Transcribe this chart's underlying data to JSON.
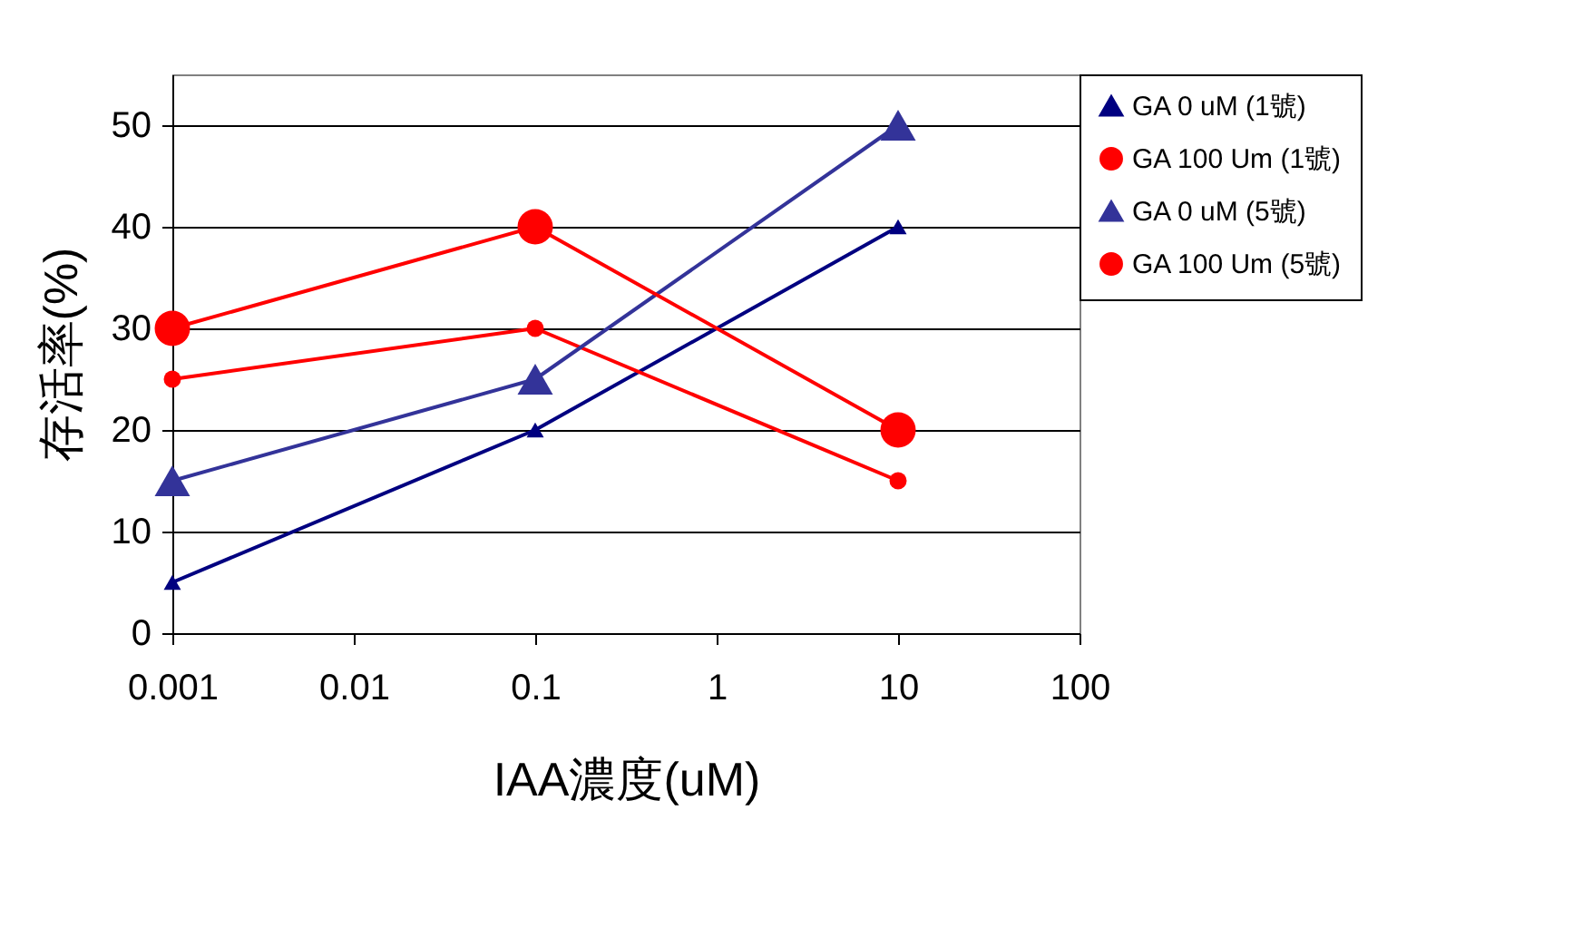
{
  "chart_data": {
    "type": "line",
    "xlabel": "IAA濃度(uM)",
    "ylabel": "存活率(%)",
    "x": [
      0.001,
      0.1,
      10
    ],
    "log": "x",
    "xlim": [
      0.001,
      100
    ],
    "xticks": [
      0.001,
      0.01,
      0.1,
      1,
      10,
      100
    ],
    "ylim": [
      0,
      55
    ],
    "yticks": [
      0,
      10,
      20,
      30,
      40,
      50
    ],
    "grid": "y",
    "legend": "top right",
    "series": [
      {
        "name": "GA 0 uM (1號)",
        "color": "#000080",
        "marker": "triangle",
        "values": [
          5,
          20,
          40
        ]
      },
      {
        "name": "GA 100 Um (1號)",
        "color": "#ff0000",
        "marker": "circle",
        "values": [
          25,
          30,
          15
        ]
      },
      {
        "name": "GA 0 uM (5號)",
        "color": "#333399",
        "marker": "triangle",
        "values": [
          15,
          25,
          50
        ]
      },
      {
        "name": "GA 100 Um (5號)",
        "color": "#ff0000",
        "marker": "circle",
        "values": [
          30,
          40,
          20
        ]
      }
    ]
  }
}
